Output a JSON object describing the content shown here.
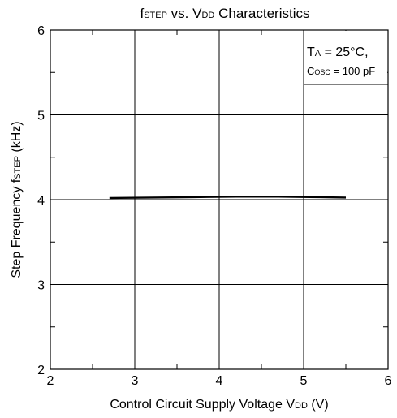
{
  "chart_data": {
    "type": "line",
    "title": {
      "p1": "f",
      "p1_sub": "STEP",
      "p2": " vs. V",
      "p2_sub": "DD",
      "p3": " Characteristics"
    },
    "xlabel": {
      "main": "Control Circuit Supply Voltage V",
      "sub": "DD",
      "unit": " (V)"
    },
    "ylabel": {
      "main": "Step Frequency f",
      "sub": "STEP",
      "unit": " (kHz)"
    },
    "xlim": [
      2,
      6
    ],
    "ylim": [
      2,
      6
    ],
    "x_ticks": [
      2,
      3,
      4,
      5,
      6
    ],
    "y_ticks": [
      2,
      3,
      4,
      5,
      6
    ],
    "grid": true,
    "series": [
      {
        "x": [
          2.7,
          3.2,
          3.7,
          4.2,
          4.7,
          5.2,
          5.5
        ],
        "y": [
          4.02,
          4.025,
          4.03,
          4.035,
          4.035,
          4.03,
          4.025
        ]
      }
    ],
    "annotation": {
      "line1_main": "T",
      "line1_sub": "A",
      "line1_rest": " = 25°C,",
      "line2_main": "C",
      "line2_sub": "OSC",
      "line2_rest": " = 100 pF"
    }
  }
}
